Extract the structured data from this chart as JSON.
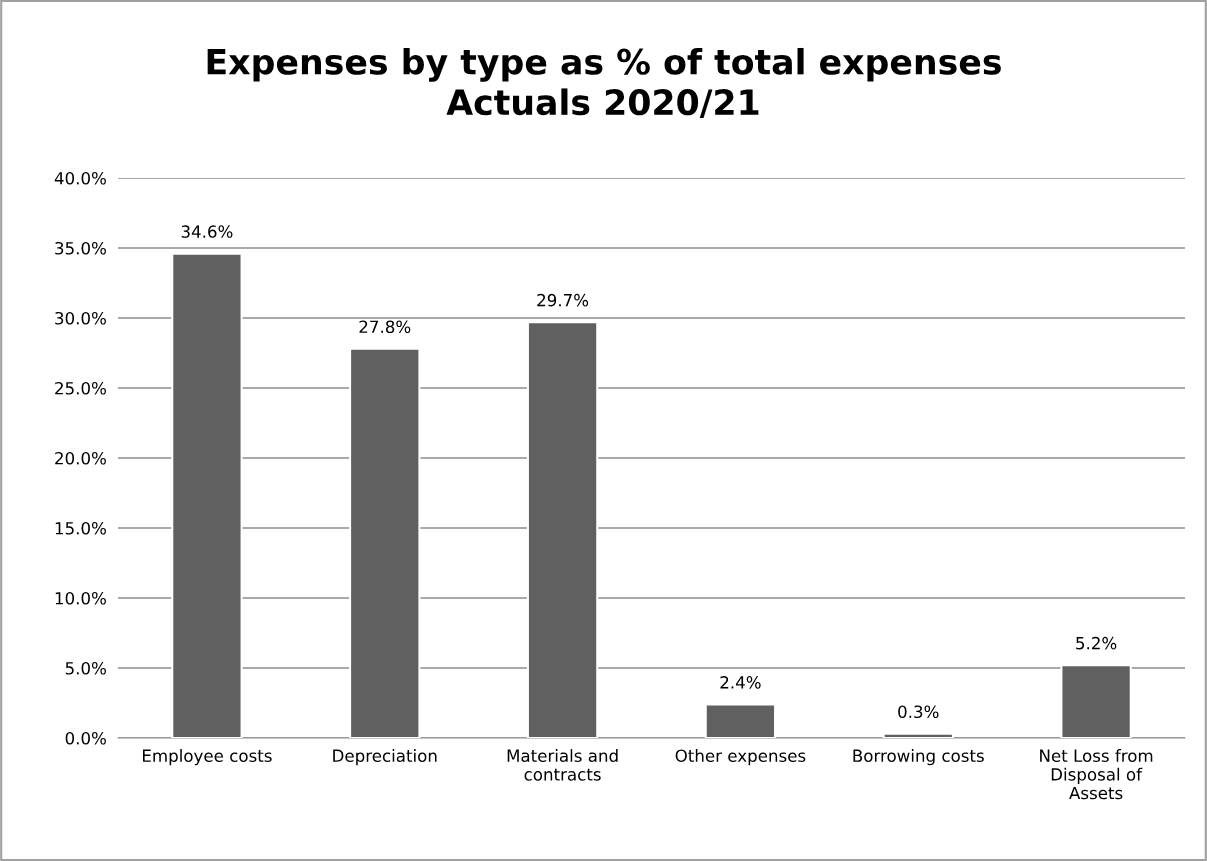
{
  "chart_data": {
    "type": "bar",
    "title": "Expenses by type as % of total expenses\nActuals 2020/21",
    "categories": [
      "Employee costs",
      "Depreciation",
      "Materials and contracts",
      "Other expenses",
      "Borrowing costs",
      "Net Loss from Disposal of Assets"
    ],
    "values": [
      34.6,
      27.8,
      29.7,
      2.4,
      0.3,
      5.2
    ],
    "value_labels": [
      "34.6%",
      "27.8%",
      "29.7%",
      "2.4%",
      "0.3%",
      "5.2%"
    ],
    "color": "#606060",
    "ylim": [
      0,
      40
    ],
    "yticks": [
      {
        "value": 0,
        "label": "0.0%"
      },
      {
        "value": 5,
        "label": "5.0%"
      },
      {
        "value": 10,
        "label": "10.0%"
      },
      {
        "value": 15,
        "label": "15.0%"
      },
      {
        "value": 20,
        "label": "20.0%"
      },
      {
        "value": 25,
        "label": "25.0%"
      },
      {
        "value": 30,
        "label": "30.0%"
      },
      {
        "value": 35,
        "label": "35.0%"
      },
      {
        "value": 40,
        "label": "40.0%"
      }
    ],
    "grid": "y"
  }
}
